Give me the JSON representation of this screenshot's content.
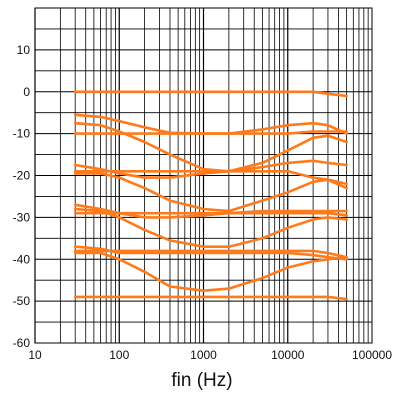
{
  "chart_data": {
    "type": "line",
    "title": "",
    "xlabel": "fin (Hz)",
    "ylabel": "",
    "x_scale": "log",
    "xlim": [
      10,
      100000
    ],
    "ylim": [
      -60,
      20
    ],
    "grid": true,
    "legend": "none",
    "x_tick_labels": [
      "10",
      "100",
      "1000",
      "10000",
      "100000"
    ],
    "y_tick_labels": [
      "10",
      "0",
      "-10",
      "-20",
      "-30",
      "-40",
      "-50",
      "-60"
    ],
    "line_color": "#ff7a1a",
    "series": [
      {
        "x": [
          30,
          300,
          3000,
          20000,
          30000,
          50000
        ],
        "y": [
          0,
          0,
          0,
          0,
          -0.5,
          -1
        ]
      },
      {
        "x": [
          30,
          60,
          100,
          200,
          400,
          1000,
          2000,
          5000,
          10000,
          20000,
          30000,
          50000
        ],
        "y": [
          -5.5,
          -6,
          -7,
          -8.5,
          -9.8,
          -10,
          -10,
          -9,
          -8,
          -7.5,
          -8,
          -10
        ]
      },
      {
        "x": [
          30,
          100,
          300,
          1000,
          3000,
          10000,
          20000,
          30000,
          50000
        ],
        "y": [
          -10,
          -10,
          -10,
          -10,
          -10,
          -10,
          -9.5,
          -9.5,
          -9.5
        ]
      },
      {
        "x": [
          30,
          60,
          100,
          200,
          400,
          1000,
          2000,
          5000,
          10000,
          20000,
          30000,
          50000
        ],
        "y": [
          -7.5,
          -8,
          -9.5,
          -12,
          -15,
          -18.5,
          -19,
          -17,
          -14,
          -11,
          -10.5,
          -12
        ]
      },
      {
        "x": [
          30,
          60,
          100,
          200,
          400,
          1000,
          2000,
          5000,
          10000,
          20000,
          30000,
          50000
        ],
        "y": [
          -17.5,
          -18.5,
          -19.5,
          -20.5,
          -20.5,
          -19.5,
          -19,
          -18,
          -17,
          -16.5,
          -17,
          -17.5
        ]
      },
      {
        "x": [
          30,
          100,
          300,
          1000,
          3000,
          10000,
          20000,
          30000,
          50000
        ],
        "y": [
          -19,
          -19,
          -19,
          -19,
          -19,
          -19,
          -20.5,
          -21,
          -23
        ]
      },
      {
        "x": [
          30,
          60,
          100,
          200,
          400,
          1000,
          2000,
          5000,
          10000,
          20000,
          30000,
          50000
        ],
        "y": [
          -19.5,
          -19.5,
          -20.5,
          -23,
          -26,
          -28,
          -28.5,
          -26,
          -24,
          -21.5,
          -21,
          -22
        ]
      },
      {
        "x": [
          30,
          60,
          100,
          200,
          400,
          1000,
          2000,
          5000,
          10000,
          20000,
          30000,
          50000
        ],
        "y": [
          -27,
          -28,
          -29,
          -30,
          -30,
          -29.5,
          -29,
          -28.5,
          -28.5,
          -28.5,
          -28.5,
          -28.5
        ]
      },
      {
        "x": [
          30,
          100,
          300,
          1000,
          3000,
          10000,
          20000,
          30000,
          50000
        ],
        "y": [
          -29,
          -29,
          -29,
          -29,
          -29,
          -29,
          -29,
          -29,
          -29.5
        ]
      },
      {
        "x": [
          30,
          60,
          100,
          200,
          400,
          1000,
          2000,
          5000,
          10000,
          20000,
          30000,
          50000
        ],
        "y": [
          -28,
          -28.5,
          -30,
          -33,
          -35.5,
          -37,
          -37,
          -35,
          -32.5,
          -30.5,
          -30,
          -30.5
        ]
      },
      {
        "x": [
          30,
          60,
          100,
          200,
          400,
          1000,
          2000,
          5000,
          10000,
          20000,
          30000,
          50000
        ],
        "y": [
          -37,
          -37.5,
          -38.5,
          -38.5,
          -38.5,
          -38.5,
          -38.5,
          -38.5,
          -38.5,
          -39,
          -39.5,
          -40
        ]
      },
      {
        "x": [
          30,
          100,
          300,
          1000,
          3000,
          10000,
          20000,
          30000,
          50000
        ],
        "y": [
          -38,
          -38,
          -38,
          -38,
          -38,
          -38,
          -38,
          -38.5,
          -39.5
        ]
      },
      {
        "x": [
          30,
          60,
          100,
          200,
          400,
          1000,
          2000,
          5000,
          10000,
          20000,
          30000,
          50000
        ],
        "y": [
          -38.5,
          -38.5,
          -40,
          -43,
          -46.5,
          -47.5,
          -47,
          -44.5,
          -42,
          -40.5,
          -40,
          -39.5
        ]
      },
      {
        "x": [
          30,
          300,
          3000,
          20000,
          30000,
          50000
        ],
        "y": [
          -49,
          -49,
          -49,
          -49,
          -49,
          -49.5
        ]
      }
    ]
  }
}
